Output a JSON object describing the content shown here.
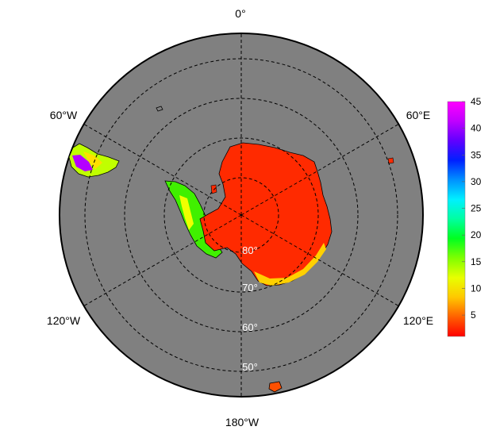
{
  "map": {
    "projection": "south-polar-stereographic",
    "ocean_color": "#808080",
    "land_color": "#ff2a00",
    "border_color": "#000000",
    "lat_circles": [
      80,
      70,
      60,
      50
    ],
    "lat_labels": [
      "80°",
      "70°",
      "60°",
      "50°"
    ],
    "lon_lines": [
      0,
      60,
      120,
      180,
      240,
      300
    ],
    "lon_labels": {
      "top": "0°",
      "upper_left": "60°W",
      "upper_right": "60°E",
      "lower_left": "120°W",
      "lower_right": "120°E",
      "bottom": "180°W"
    }
  },
  "colorbar": {
    "ticks": [
      5,
      10,
      15,
      20,
      25,
      30,
      35,
      40,
      45
    ],
    "min": 1,
    "max": 45,
    "colors": [
      "#ff0000",
      "#ff6000",
      "#ffc800",
      "#e8ff00",
      "#80ff00",
      "#00ff20",
      "#00ffa0",
      "#00f0ff",
      "#0090ff",
      "#0020ff",
      "#6000ff",
      "#c000ff",
      "#ff00ff"
    ]
  }
}
